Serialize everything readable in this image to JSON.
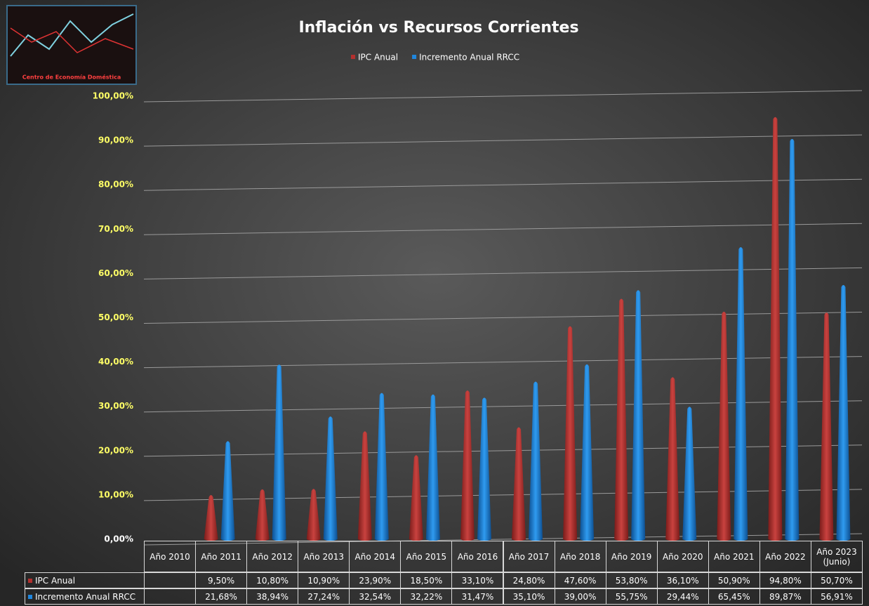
{
  "chart_data": {
    "type": "bar",
    "title": "Inflación vs Recursos Corrientes",
    "logo": "Centro de Economía Doméstica",
    "categories": [
      "Año 2010",
      "Año 2011",
      "Año 2012",
      "Año 2013",
      "Año 2014",
      "Año 2015",
      "Año 2016",
      "Año 2017",
      "Año 2018",
      "Año 2019",
      "Año 2020",
      "Año 2021",
      "Año 2022",
      "Año 2023 (Junio)"
    ],
    "series": [
      {
        "name": "IPC Anual",
        "color": "#b3302e",
        "values": [
          null,
          9.5,
          10.8,
          10.9,
          23.9,
          18.5,
          33.1,
          24.8,
          47.6,
          53.8,
          36.1,
          50.9,
          94.8,
          50.7
        ],
        "value_labels": [
          null,
          "9,50%",
          "10,80%",
          "10,90%",
          "23,90%",
          "18,50%",
          "33,10%",
          "24,80%",
          "47,60%",
          "53,80%",
          "36,10%",
          "50,90%",
          "94,80%",
          "50,70%"
        ]
      },
      {
        "name": "Incremento Anual RRCC",
        "color": "#1f86dd",
        "values": [
          null,
          21.68,
          38.94,
          27.24,
          32.54,
          32.22,
          31.47,
          35.1,
          39.0,
          55.75,
          29.44,
          65.45,
          89.87,
          56.91
        ],
        "value_labels": [
          null,
          "21,68%",
          "38,94%",
          "27,24%",
          "32,54%",
          "32,22%",
          "31,47%",
          "35,10%",
          "39,00%",
          "55,75%",
          "29,44%",
          "65,45%",
          "89,87%",
          "56,91%"
        ]
      }
    ],
    "ylim": [
      0,
      100
    ],
    "yticks": [
      {
        "value": 0,
        "label": "0,00%"
      },
      {
        "value": 10,
        "label": "10,00%"
      },
      {
        "value": 20,
        "label": "20,00%"
      },
      {
        "value": 30,
        "label": "30,00%"
      },
      {
        "value": 40,
        "label": "40,00%"
      },
      {
        "value": 50,
        "label": "50,00%"
      },
      {
        "value": 60,
        "label": "60,00%"
      },
      {
        "value": 70,
        "label": "70,00%"
      },
      {
        "value": 80,
        "label": "80,00%"
      },
      {
        "value": 90,
        "label": "90,00%"
      },
      {
        "value": 100,
        "label": "100,00%"
      }
    ],
    "grid": true
  }
}
